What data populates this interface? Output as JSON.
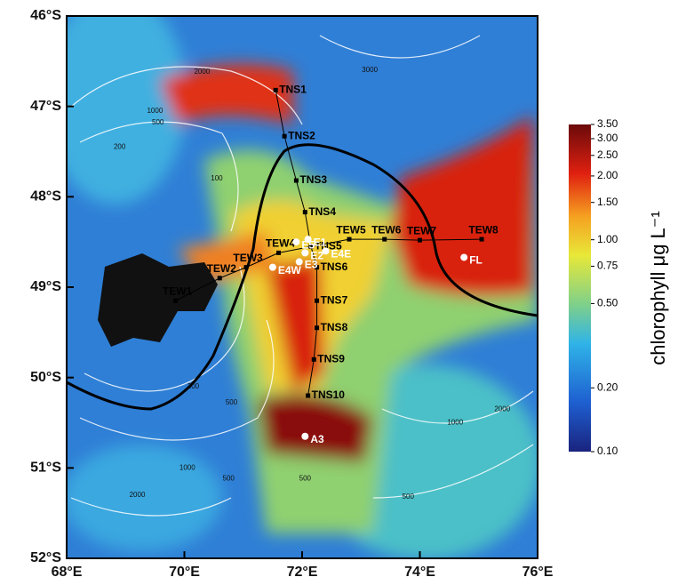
{
  "map": {
    "xlim": [
      68,
      76
    ],
    "ylim": [
      46,
      52
    ],
    "xticks": [
      {
        "value": 68,
        "label": "68°E"
      },
      {
        "value": 70,
        "label": "70°E"
      },
      {
        "value": 72,
        "label": "72°E"
      },
      {
        "value": 74,
        "label": "74°E"
      },
      {
        "value": 76,
        "label": "76°E"
      }
    ],
    "yticks": [
      {
        "value": 46,
        "label": "46°S"
      },
      {
        "value": 47,
        "label": "47°S"
      },
      {
        "value": 48,
        "label": "48°S"
      },
      {
        "value": 49,
        "label": "49°S"
      },
      {
        "value": 50,
        "label": "50°S"
      },
      {
        "value": 51,
        "label": "51°S"
      },
      {
        "value": 52,
        "label": "52°S"
      }
    ],
    "north_south_transect": [
      {
        "label": "TNS1",
        "lon": 71.55,
        "lat": 46.82
      },
      {
        "label": "TNS2",
        "lon": 71.7,
        "lat": 47.33
      },
      {
        "label": "TNS3",
        "lon": 71.9,
        "lat": 47.82
      },
      {
        "label": "TNS4",
        "lon": 72.05,
        "lat": 48.17
      },
      {
        "label": "TNS5",
        "lon": 72.15,
        "lat": 48.55
      },
      {
        "label": "TNS6",
        "lon": 72.25,
        "lat": 48.78
      },
      {
        "label": "TNS7",
        "lon": 72.25,
        "lat": 49.15
      },
      {
        "label": "TNS8",
        "lon": 72.25,
        "lat": 49.45
      },
      {
        "label": "TNS9",
        "lon": 72.2,
        "lat": 49.8
      },
      {
        "label": "TNS10",
        "lon": 72.1,
        "lat": 50.2
      }
    ],
    "east_west_transect": [
      {
        "label": "TEW1",
        "lon": 69.85,
        "lat": 49.15
      },
      {
        "label": "TEW2",
        "lon": 70.6,
        "lat": 48.9
      },
      {
        "label": "TEW3",
        "lon": 71.05,
        "lat": 48.78
      },
      {
        "label": "TEW4",
        "lon": 71.6,
        "lat": 48.62
      },
      {
        "label": "TEW5",
        "lon": 72.8,
        "lat": 48.47
      },
      {
        "label": "TEW6",
        "lon": 73.4,
        "lat": 48.47
      },
      {
        "label": "TEW7",
        "lon": 74.0,
        "lat": 48.48
      },
      {
        "label": "TEW8",
        "lon": 75.05,
        "lat": 48.47
      }
    ],
    "other_stations": [
      {
        "label": "E5",
        "lon": 71.9,
        "lat": 48.5
      },
      {
        "label": "E1",
        "lon": 72.1,
        "lat": 48.47
      },
      {
        "label": "E2",
        "lon": 72.05,
        "lat": 48.62
      },
      {
        "label": "E4E",
        "lon": 72.4,
        "lat": 48.6
      },
      {
        "label": "E3",
        "lon": 71.95,
        "lat": 48.72
      },
      {
        "label": "E4W",
        "lon": 71.5,
        "lat": 48.78
      },
      {
        "label": "A3",
        "lon": 72.05,
        "lat": 50.65
      },
      {
        "label": "FL",
        "lon": 74.75,
        "lat": 48.67
      }
    ],
    "contour_labels": [
      {
        "label": "2000",
        "lon": 70.3,
        "lat": 46.62
      },
      {
        "label": "1000",
        "lon": 69.5,
        "lat": 47.05
      },
      {
        "label": "500",
        "lon": 69.55,
        "lat": 47.18
      },
      {
        "label": "200",
        "lon": 68.9,
        "lat": 47.45
      },
      {
        "label": "100",
        "lon": 70.55,
        "lat": 47.8
      },
      {
        "label": "3000",
        "lon": 73.15,
        "lat": 46.6
      },
      {
        "label": "200",
        "lon": 70.15,
        "lat": 50.1
      },
      {
        "label": "500",
        "lon": 70.8,
        "lat": 50.28
      },
      {
        "label": "1000",
        "lon": 70.05,
        "lat": 51.0
      },
      {
        "label": "500",
        "lon": 70.75,
        "lat": 51.12
      },
      {
        "label": "2000",
        "lon": 69.2,
        "lat": 51.3
      },
      {
        "label": "500",
        "lon": 72.05,
        "lat": 51.12
      },
      {
        "label": "1000",
        "lon": 74.6,
        "lat": 50.5
      },
      {
        "label": "2000",
        "lon": 75.4,
        "lat": 50.35
      },
      {
        "label": "500",
        "lon": 73.8,
        "lat": 51.32
      }
    ]
  },
  "colorbar": {
    "label": "chlorophyll   μg L⁻¹",
    "lim": [
      0.1,
      3.5
    ],
    "log": true,
    "ticks": [
      {
        "value": 3.5,
        "label": "3.50"
      },
      {
        "value": 3,
        "label": "3.00"
      },
      {
        "value": 2.5,
        "label": "2.50"
      },
      {
        "value": 2,
        "label": "2.00"
      },
      {
        "value": 1.5,
        "label": "1.50"
      },
      {
        "value": 1,
        "label": "1.00"
      },
      {
        "value": 0.75,
        "label": "0.75"
      },
      {
        "value": 0.5,
        "label": "0.50"
      },
      {
        "value": 0.2,
        "label": "0.20"
      },
      {
        "value": 0.1,
        "label": "0.10"
      }
    ]
  }
}
